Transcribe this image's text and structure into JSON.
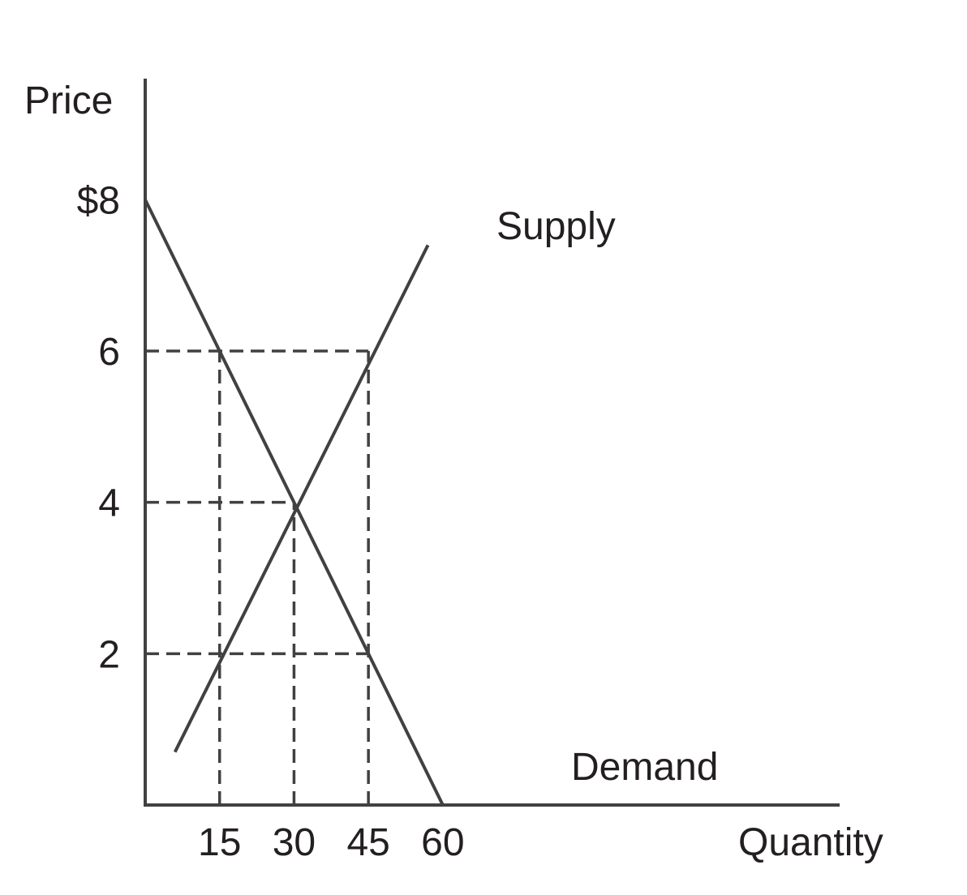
{
  "chart_data": {
    "type": "line",
    "xlabel": "Quantity",
    "ylabel": "Price",
    "xlim": [
      0,
      140
    ],
    "ylim": [
      0,
      9.6
    ],
    "x_ticks": [
      {
        "value": 15,
        "label": "15"
      },
      {
        "value": 30,
        "label": "30"
      },
      {
        "value": 45,
        "label": "45"
      },
      {
        "value": 60,
        "label": "60"
      }
    ],
    "y_ticks": [
      {
        "value": 8,
        "label": "$8"
      },
      {
        "value": 6,
        "label": "6"
      },
      {
        "value": 4,
        "label": "4"
      },
      {
        "value": 2,
        "label": "2"
      }
    ],
    "series": [
      {
        "name": "Supply",
        "points": [
          [
            6,
            0.7
          ],
          [
            57,
            7.4
          ]
        ]
      },
      {
        "name": "Demand",
        "points": [
          [
            0,
            8
          ],
          [
            60,
            0
          ]
        ]
      }
    ],
    "reference_lines": [
      {
        "from": [
          0,
          6
        ],
        "to": [
          45,
          6
        ]
      },
      {
        "from": [
          0,
          4
        ],
        "to": [
          30,
          4
        ]
      },
      {
        "from": [
          0,
          2
        ],
        "to": [
          45,
          2
        ]
      },
      {
        "from": [
          15,
          0
        ],
        "to": [
          15,
          6
        ]
      },
      {
        "from": [
          30,
          0
        ],
        "to": [
          30,
          4
        ]
      },
      {
        "from": [
          45,
          0
        ],
        "to": [
          45,
          6
        ]
      }
    ],
    "colors": {
      "line": "#414042",
      "text": "#231f20"
    },
    "grid": false,
    "legend": "none"
  }
}
